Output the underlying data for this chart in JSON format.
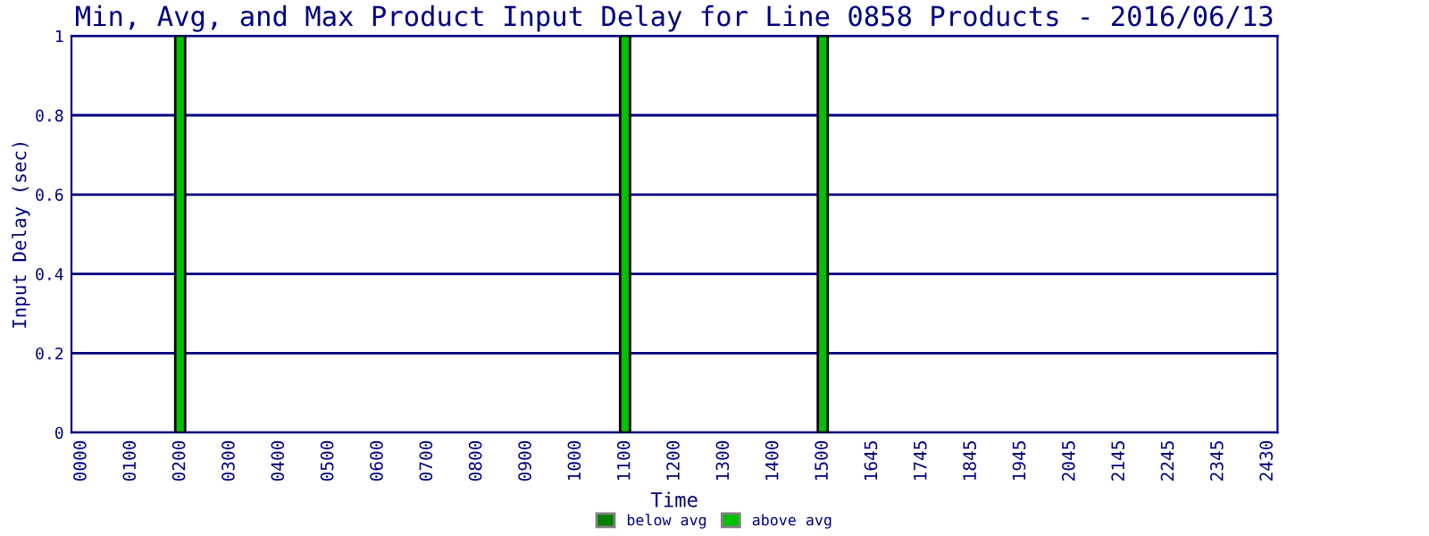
{
  "chart_data": {
    "type": "bar",
    "title": "Min, Avg, and Max Product Input Delay for Line 0858 Products - 2016/06/13",
    "xlabel": "Time",
    "ylabel": "Input Delay (sec)",
    "categories": [
      "0000",
      "0100",
      "0200",
      "0300",
      "0400",
      "0500",
      "0600",
      "0700",
      "0800",
      "0900",
      "1000",
      "1100",
      "1200",
      "1300",
      "1400",
      "1500",
      "1645",
      "1745",
      "1845",
      "1945",
      "2045",
      "2145",
      "2245",
      "2345",
      "2430"
    ],
    "series": [
      {
        "name": "below avg",
        "color": "#008000",
        "values": [
          null,
          null,
          null,
          null,
          null,
          null,
          null,
          null,
          null,
          null,
          null,
          null,
          null,
          null,
          null,
          null,
          null,
          null,
          null,
          null,
          null,
          null,
          null,
          null,
          null
        ]
      },
      {
        "name": "above avg",
        "color": "#00c000",
        "values": [
          null,
          null,
          1,
          null,
          null,
          null,
          null,
          null,
          null,
          null,
          null,
          1,
          null,
          null,
          null,
          1,
          null,
          null,
          null,
          null,
          null,
          null,
          null,
          null,
          null
        ]
      }
    ],
    "ylim": [
      0,
      1
    ],
    "yticks": [
      0,
      0.2,
      0.4,
      0.6,
      0.8,
      1
    ],
    "grid": "y",
    "legend": "bottom"
  }
}
